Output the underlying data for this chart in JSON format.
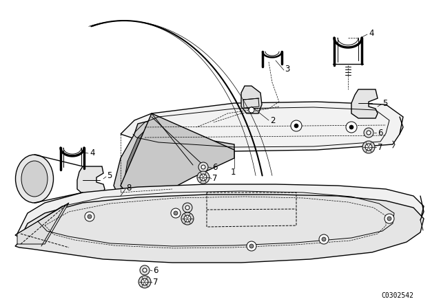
{
  "background_color": "#ffffff",
  "line_color": "#000000",
  "code_text": "C0302542",
  "label_fontsize": 8.5,
  "code_fontsize": 7
}
